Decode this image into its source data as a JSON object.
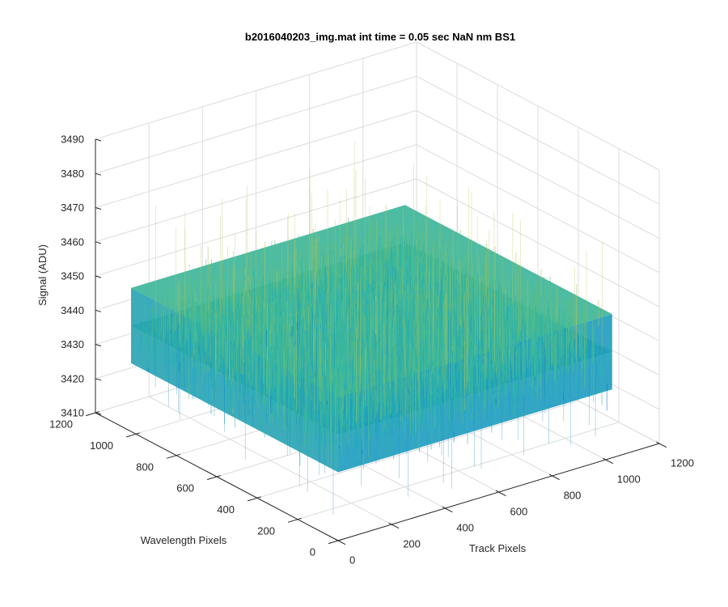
{
  "figure": {
    "title": "b2016040203_img.mat int time = 0.05 sec  NaN nm BS1"
  },
  "chart_data": {
    "type": "surface",
    "title": "b2016040203_img.mat int time = 0.05 sec  NaN nm BS1",
    "xlabel": "Track Pixels",
    "ylabel": "Wavelength Pixels",
    "zlabel": "Signal (ADU)",
    "xlim": [
      0,
      1200
    ],
    "ylim": [
      0,
      1200
    ],
    "zlim": [
      3410,
      3490
    ],
    "x_ticks": [
      "0",
      "200",
      "400",
      "600",
      "800",
      "1000",
      "1200"
    ],
    "y_ticks": [
      "0",
      "200",
      "400",
      "600",
      "800",
      "1000",
      "1200"
    ],
    "z_ticks": [
      "3410",
      "3420",
      "3430",
      "3440",
      "3450",
      "3460",
      "3470",
      "3480",
      "3490"
    ],
    "surface_extent": {
      "x": [
        0,
        1024
      ],
      "y": [
        0,
        1024
      ]
    },
    "surface_level_mean": 3441,
    "surface_level_spread": [
      3420,
      3475
    ],
    "grid": true,
    "colormap": [
      "#0072BD",
      "#1EA6C8",
      "#2FB7A5",
      "#5EBE83",
      "#A9C25C",
      "#E2C04A"
    ]
  }
}
